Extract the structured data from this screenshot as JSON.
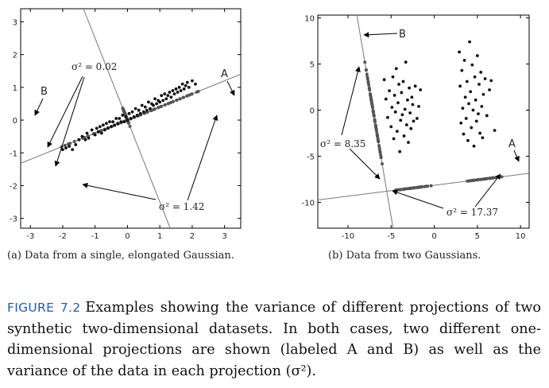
{
  "figure_label": "FIGURE 7.2",
  "caption": "Examples showing the variance of different projections of two synthetic two-dimensional datasets. In both cases, two different one-dimensional projections are shown (labeled A and B) as well as the variance of the data in each projection (σ²).",
  "colors": {
    "caption_label": "#1d5fb0",
    "points": "#111111",
    "projected": "#555555",
    "line": "#777777"
  },
  "panel_a": {
    "subcaption": "(a) Data from a single, elongated Gaussian.",
    "projection_labels": {
      "a": "A",
      "b": "B"
    },
    "annotation_b": "σ² = 0.02",
    "annotation_a": "σ² = 1.42"
  },
  "panel_b": {
    "subcaption": "(b) Data from two Gaussians.",
    "projection_labels": {
      "a": "A",
      "b": "B"
    },
    "annotation_b": "σ² = 8.35",
    "annotation_a": "σ² = 17.37"
  },
  "chart_data": [
    {
      "type": "scatter",
      "title": "",
      "xlabel": "",
      "ylabel": "",
      "xlim": [
        -3.3,
        3.5
      ],
      "ylim": [
        -3.3,
        3.4
      ],
      "xticks": [
        "-3",
        "-2",
        "-1",
        "0",
        "1",
        "2",
        "3"
      ],
      "yticks": [
        "3",
        "2",
        "1",
        "0",
        "-1",
        "-2",
        "-3"
      ],
      "grid": false,
      "line_a": {
        "through": [
          0,
          0
        ],
        "slope": 0.4,
        "label": "A",
        "variance": 1.42
      },
      "line_b": {
        "through": [
          0,
          0
        ],
        "slope": -2.5,
        "label": "B",
        "variance": 0.02
      },
      "data_points": [
        [
          -2.0,
          -0.9
        ],
        [
          -1.9,
          -0.85
        ],
        [
          -1.8,
          -0.8
        ],
        [
          -1.7,
          -0.9
        ],
        [
          -1.6,
          -0.75
        ],
        [
          -1.5,
          -0.6
        ],
        [
          -1.4,
          -0.5
        ],
        [
          -1.3,
          -0.6
        ],
        [
          -1.25,
          -0.4
        ],
        [
          -1.2,
          -0.55
        ],
        [
          -1.1,
          -0.3
        ],
        [
          -1.0,
          -0.45
        ],
        [
          -0.95,
          -0.25
        ],
        [
          -0.9,
          -0.35
        ],
        [
          -0.85,
          -0.2
        ],
        [
          -0.8,
          -0.4
        ],
        [
          -0.75,
          -0.15
        ],
        [
          -0.7,
          -0.3
        ],
        [
          -0.65,
          -0.1
        ],
        [
          -0.6,
          -0.25
        ],
        [
          -0.55,
          -0.05
        ],
        [
          -0.5,
          -0.2
        ],
        [
          -0.45,
          -0.05
        ],
        [
          -0.4,
          -0.15
        ],
        [
          -0.35,
          0.05
        ],
        [
          -0.3,
          -0.1
        ],
        [
          -0.25,
          0.05
        ],
        [
          -0.2,
          -0.05
        ],
        [
          -0.15,
          0.15
        ],
        [
          -0.1,
          -0.05
        ],
        [
          -0.05,
          0.1
        ],
        [
          0.0,
          0.0
        ],
        [
          0.05,
          0.2
        ],
        [
          0.1,
          0.05
        ],
        [
          0.15,
          0.25
        ],
        [
          0.2,
          0.1
        ],
        [
          0.25,
          0.35
        ],
        [
          0.3,
          0.15
        ],
        [
          0.35,
          0.3
        ],
        [
          0.4,
          0.2
        ],
        [
          0.45,
          0.45
        ],
        [
          0.5,
          0.25
        ],
        [
          0.55,
          0.4
        ],
        [
          0.6,
          0.3
        ],
        [
          0.65,
          0.55
        ],
        [
          0.7,
          0.35
        ],
        [
          0.75,
          0.5
        ],
        [
          0.8,
          0.45
        ],
        [
          0.85,
          0.65
        ],
        [
          0.9,
          0.5
        ],
        [
          0.95,
          0.6
        ],
        [
          1.0,
          0.55
        ],
        [
          1.05,
          0.75
        ],
        [
          1.1,
          0.6
        ],
        [
          1.15,
          0.8
        ],
        [
          1.2,
          0.65
        ],
        [
          1.25,
          0.75
        ],
        [
          1.3,
          0.85
        ],
        [
          1.35,
          0.7
        ],
        [
          1.4,
          0.9
        ],
        [
          1.45,
          0.8
        ],
        [
          1.5,
          0.95
        ],
        [
          1.55,
          0.85
        ],
        [
          1.6,
          1.0
        ],
        [
          1.65,
          0.9
        ],
        [
          1.7,
          1.1
        ],
        [
          1.75,
          0.95
        ],
        [
          1.8,
          1.05
        ],
        [
          1.85,
          1.15
        ],
        [
          1.9,
          1.0
        ],
        [
          2.0,
          1.2
        ],
        [
          2.1,
          1.1
        ]
      ]
    },
    {
      "type": "scatter",
      "title": "",
      "xlabel": "",
      "ylabel": "",
      "xlim": [
        -13.5,
        11
      ],
      "ylim": [
        -12.8,
        10.3
      ],
      "xticks": [
        "-10",
        "-5",
        "0",
        "5",
        "10"
      ],
      "yticks": [
        "10",
        "5",
        "0",
        "-5",
        "-10"
      ],
      "grid": false,
      "line_a": {
        "through": [
          -5.5,
          -8.8
        ],
        "slope": 0.118,
        "label": "A",
        "variance": 17.37
      },
      "line_b": {
        "through": [
          -5.5,
          -8.8
        ],
        "slope": -5.5,
        "label": "B",
        "variance": 8.35
      },
      "data_points": [
        [
          -5.8,
          3.3
        ],
        [
          -5.6,
          1.2
        ],
        [
          -5.4,
          -0.8
        ],
        [
          -5.2,
          2.1
        ],
        [
          -5.0,
          -1.8
        ],
        [
          -4.9,
          0.3
        ],
        [
          -4.8,
          3.6
        ],
        [
          -4.7,
          -3.1
        ],
        [
          -4.6,
          1.6
        ],
        [
          -4.5,
          -0.2
        ],
        [
          -4.4,
          4.5
        ],
        [
          -4.3,
          -2.3
        ],
        [
          -4.2,
          0.8
        ],
        [
          -4.1,
          2.8
        ],
        [
          -4.0,
          -4.5
        ],
        [
          -3.9,
          -1.1
        ],
        [
          -3.8,
          1.9
        ],
        [
          -3.7,
          -0.5
        ],
        [
          -3.6,
          3.1
        ],
        [
          -3.5,
          -2.8
        ],
        [
          -3.4,
          0.1
        ],
        [
          -3.3,
          5.2
        ],
        [
          -3.2,
          -1.6
        ],
        [
          -3.1,
          1.1
        ],
        [
          -3.0,
          -3.5
        ],
        [
          -2.9,
          2.4
        ],
        [
          -2.8,
          -0.3
        ],
        [
          -2.7,
          -2.0
        ],
        [
          -2.6,
          1.4
        ],
        [
          -2.5,
          0.6
        ],
        [
          -2.4,
          -1.2
        ],
        [
          -2.2,
          2.6
        ],
        [
          -2.0,
          -0.9
        ],
        [
          -1.8,
          0.4
        ],
        [
          -1.6,
          2.2
        ],
        [
          2.9,
          6.3
        ],
        [
          3.0,
          2.6
        ],
        [
          3.1,
          -1.4
        ],
        [
          3.2,
          4.3
        ],
        [
          3.3,
          0.2
        ],
        [
          3.4,
          -2.6
        ],
        [
          3.5,
          5.4
        ],
        [
          3.6,
          1.4
        ],
        [
          3.7,
          -0.9
        ],
        [
          3.8,
          3.1
        ],
        [
          3.9,
          -3.3
        ],
        [
          4.0,
          0.7
        ],
        [
          4.1,
          7.4
        ],
        [
          4.2,
          2.0
        ],
        [
          4.3,
          -1.9
        ],
        [
          4.4,
          4.9
        ],
        [
          4.5,
          0.0
        ],
        [
          4.6,
          -3.9
        ],
        [
          4.7,
          3.6
        ],
        [
          4.8,
          1.1
        ],
        [
          4.9,
          -1.2
        ],
        [
          5.0,
          5.9
        ],
        [
          5.1,
          -0.4
        ],
        [
          5.2,
          2.8
        ],
        [
          5.3,
          -2.5
        ],
        [
          5.4,
          4.1
        ],
        [
          5.5,
          0.4
        ],
        [
          5.6,
          -3.0
        ],
        [
          5.7,
          1.7
        ],
        [
          5.9,
          3.4
        ],
        [
          6.1,
          -0.6
        ],
        [
          6.4,
          2.2
        ],
        [
          6.6,
          3.2
        ],
        [
          7.0,
          -2.2
        ]
      ]
    }
  ]
}
